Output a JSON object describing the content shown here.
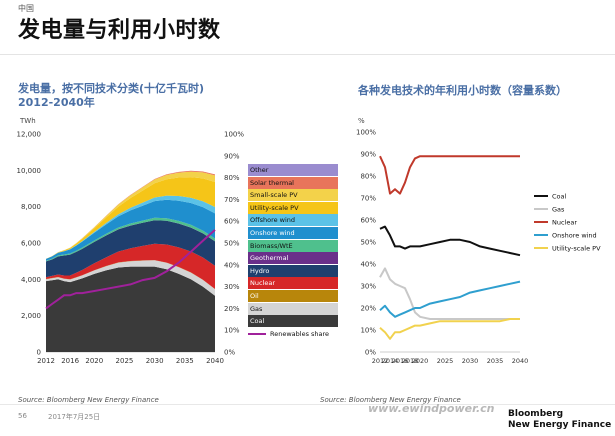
{
  "header": {
    "region": "中国",
    "title": "发电量与利用小时数"
  },
  "left_chart": {
    "title_line1": "发电量，按不同技术分类(十亿千瓦时)",
    "title_line2": "2012-2040年",
    "unit": "TWh",
    "source": "Source: Bloomberg New Energy Finance"
  },
  "right_chart": {
    "title": "各种发电技术的年利用小时数（容量系数）",
    "unit": "%",
    "source": "Source: Bloomberg New Energy Finance"
  },
  "footer": {
    "page": "56",
    "date": "2017年7月25日",
    "watermark": "www.ewindpower.cn",
    "brand_line1": "Bloomberg",
    "brand_line2": "New Energy Finance"
  },
  "chart_data": [
    {
      "type": "area",
      "title": "发电量，按不同技术分类(十亿千瓦时)",
      "ylabel": "TWh",
      "x": [
        2012,
        2013,
        2014,
        2015,
        2016,
        2017,
        2018,
        2020,
        2022,
        2024,
        2026,
        2028,
        2030,
        2032,
        2034,
        2036,
        2038,
        2040
      ],
      "x_ticks": [
        2012,
        2016,
        2020,
        2025,
        2030,
        2035,
        2040
      ],
      "ylim": [
        0,
        12000
      ],
      "y_ticks": [
        0,
        2000,
        4000,
        6000,
        8000,
        10000,
        12000
      ],
      "y2lim": [
        0,
        100
      ],
      "y2_ticks": [
        "0%",
        "10%",
        "20%",
        "30%",
        "40%",
        "50%",
        "60%",
        "70%",
        "80%",
        "90%",
        "100%"
      ],
      "stack_order": [
        "Coal",
        "Gas",
        "Oil",
        "Nuclear",
        "Hydro",
        "Geothermal",
        "Biomass/WtE",
        "Onshore wind",
        "Offshore wind",
        "Utility-scale PV",
        "Small-scale PV",
        "Solar thermal",
        "Other"
      ],
      "series": [
        {
          "name": "Coal",
          "color": "#3a3a3a",
          "values": [
            3900,
            3950,
            4000,
            3900,
            3850,
            3950,
            4050,
            4300,
            4500,
            4650,
            4700,
            4700,
            4700,
            4550,
            4300,
            4000,
            3600,
            3100
          ]
        },
        {
          "name": "Gas",
          "color": "#d4d4d4",
          "values": [
            110,
            115,
            120,
            130,
            140,
            150,
            165,
            190,
            230,
            270,
            300,
            330,
            350,
            360,
            370,
            370,
            370,
            360
          ]
        },
        {
          "name": "Oil",
          "color": "#b8860b",
          "values": [
            10,
            10,
            10,
            10,
            10,
            10,
            10,
            10,
            10,
            10,
            10,
            10,
            10,
            10,
            10,
            10,
            10,
            10
          ]
        },
        {
          "name": "Nuclear",
          "color": "#d62728",
          "values": [
            95,
            115,
            135,
            170,
            210,
            250,
            290,
            380,
            480,
            600,
            700,
            800,
            900,
            1000,
            1080,
            1150,
            1220,
            1280
          ]
        },
        {
          "name": "Hydro",
          "color": "#1f3f6e",
          "values": [
            870,
            900,
            1000,
            1100,
            1150,
            1150,
            1160,
            1180,
            1200,
            1220,
            1250,
            1270,
            1290,
            1300,
            1310,
            1320,
            1330,
            1340
          ]
        },
        {
          "name": "Geothermal",
          "color": "#6a2f8a",
          "values": [
            0,
            0,
            0,
            0,
            0,
            0,
            0,
            0,
            5,
            5,
            5,
            5,
            5,
            5,
            5,
            5,
            5,
            5
          ]
        },
        {
          "name": "Biomass/WtE",
          "color": "#4fc08d",
          "values": [
            40,
            45,
            50,
            55,
            60,
            65,
            70,
            80,
            90,
            100,
            110,
            120,
            130,
            135,
            140,
            145,
            150,
            155
          ]
        },
        {
          "name": "Onshore wind",
          "color": "#1f8fce",
          "values": [
            100,
            130,
            150,
            180,
            230,
            280,
            330,
            420,
            520,
            620,
            720,
            820,
            920,
            1020,
            1110,
            1200,
            1290,
            1380
          ]
        },
        {
          "name": "Offshore wind",
          "color": "#5bc2e7",
          "values": [
            0,
            0,
            5,
            10,
            15,
            20,
            30,
            50,
            80,
            110,
            140,
            170,
            200,
            230,
            260,
            290,
            320,
            350
          ]
        },
        {
          "name": "Utility-scale PV",
          "color": "#f5c518",
          "values": [
            5,
            10,
            20,
            40,
            60,
            90,
            120,
            200,
            300,
            420,
            540,
            660,
            780,
            900,
            1020,
            1140,
            1260,
            1380
          ]
        },
        {
          "name": "Small-scale PV",
          "color": "#f3d24a",
          "values": [
            2,
            5,
            10,
            15,
            20,
            30,
            40,
            60,
            90,
            120,
            150,
            180,
            210,
            240,
            270,
            300,
            330,
            360
          ]
        },
        {
          "name": "Solar thermal",
          "color": "#e8745b",
          "values": [
            0,
            0,
            0,
            0,
            0,
            1,
            2,
            5,
            10,
            15,
            20,
            25,
            30,
            35,
            40,
            45,
            50,
            55
          ]
        },
        {
          "name": "Other",
          "color": "#9a8ccf",
          "values": [
            0,
            0,
            0,
            0,
            0,
            0,
            0,
            0,
            0,
            0,
            0,
            0,
            0,
            0,
            0,
            0,
            0,
            0
          ]
        }
      ],
      "secondary_series": {
        "name": "Renewables share",
        "color": "#a0219b",
        "axis": "right",
        "values": [
          20,
          22,
          24,
          26,
          26,
          27,
          27,
          28,
          29,
          30,
          31,
          33,
          34,
          37,
          41,
          46,
          51,
          56
        ]
      },
      "legend": "right"
    },
    {
      "type": "line",
      "title": "各种发电技术的年利用小时数（容量系数）",
      "ylabel": "%",
      "x": [
        2012,
        2013,
        2014,
        2015,
        2016,
        2017,
        2018,
        2019,
        2020,
        2022,
        2024,
        2026,
        2028,
        2030,
        2032,
        2034,
        2036,
        2038,
        2040
      ],
      "x_ticks": [
        2012,
        2014,
        2016,
        2018,
        2020,
        2025,
        2030,
        2035,
        2040
      ],
      "ylim": [
        0,
        100
      ],
      "y_ticks": [
        "0%",
        "10%",
        "20%",
        "30%",
        "40%",
        "50%",
        "60%",
        "70%",
        "80%",
        "90%",
        "100%"
      ],
      "series": [
        {
          "name": "Coal",
          "color": "#111111",
          "values": [
            56,
            57,
            53,
            48,
            48,
            47,
            48,
            48,
            48,
            49,
            50,
            51,
            51,
            50,
            48,
            47,
            46,
            45,
            44
          ]
        },
        {
          "name": "Gas",
          "color": "#c8c8c8",
          "values": [
            34,
            38,
            33,
            31,
            30,
            29,
            24,
            18,
            16,
            15,
            15,
            15,
            15,
            15,
            15,
            15,
            15,
            15,
            15
          ]
        },
        {
          "name": "Nuclear",
          "color": "#c0392b",
          "values": [
            89,
            84,
            72,
            74,
            72,
            77,
            84,
            88,
            89,
            89,
            89,
            89,
            89,
            89,
            89,
            89,
            89,
            89,
            89
          ]
        },
        {
          "name": "Onshore wind",
          "color": "#2f9fcf",
          "values": [
            19,
            21,
            18,
            16,
            17,
            18,
            19,
            20,
            20,
            22,
            23,
            24,
            25,
            27,
            28,
            29,
            30,
            31,
            32
          ]
        },
        {
          "name": "Utility-scale PV",
          "color": "#f1d24e",
          "values": [
            11,
            9,
            6,
            9,
            9,
            10,
            11,
            12,
            12,
            13,
            14,
            14,
            14,
            14,
            14,
            14,
            14,
            15,
            15
          ]
        }
      ],
      "legend": "right"
    }
  ]
}
